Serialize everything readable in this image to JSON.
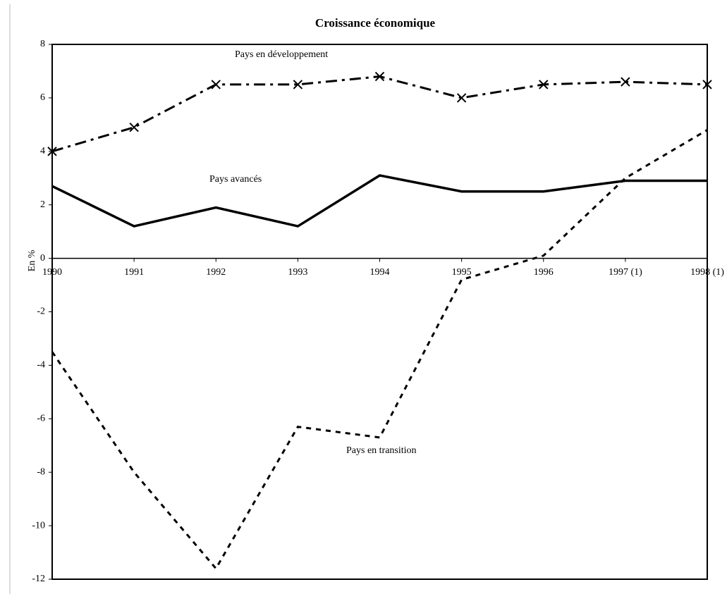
{
  "chart_data": {
    "type": "line",
    "title": "Croissance économique",
    "ylabel": "En %",
    "categories": [
      "1990",
      "1991",
      "1992",
      "1993",
      "1994",
      "1995",
      "1996",
      "1997 (1)",
      "1998 (1)"
    ],
    "series": [
      {
        "name": "Pays en développement",
        "color": "#000000",
        "line_style": "dash-dot",
        "marker": "x",
        "values": [
          4.0,
          4.9,
          6.5,
          6.5,
          6.8,
          6.0,
          6.5,
          6.6,
          6.5
        ]
      },
      {
        "name": "Pays avancés",
        "color": "#000000",
        "line_style": "solid",
        "values": [
          2.7,
          1.2,
          1.9,
          1.2,
          3.1,
          2.5,
          2.5,
          2.9,
          2.9
        ]
      },
      {
        "name": "Pays en transition",
        "color": "#000000",
        "line_style": "dashed",
        "values": [
          -3.5,
          -8.0,
          -11.6,
          -6.3,
          -6.7,
          -0.8,
          0.1,
          3.0,
          4.8
        ]
      }
    ],
    "ylim": [
      -12,
      8
    ],
    "yticks": [
      -12,
      -10,
      -8,
      -6,
      -4,
      -2,
      0,
      2,
      4,
      6,
      8
    ],
    "grid": false
  }
}
